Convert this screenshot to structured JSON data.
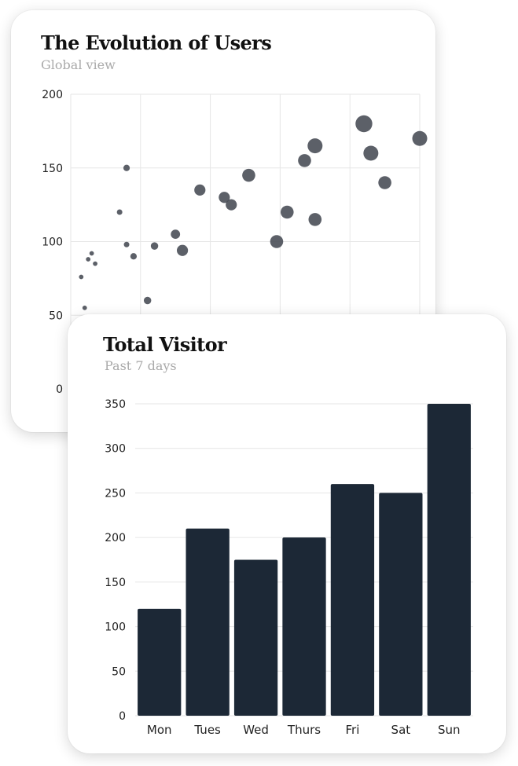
{
  "charts": {
    "users": {
      "title": "The Evolution of Users",
      "subtitle": "Global view"
    },
    "visitor": {
      "title": "Total Visitor",
      "subtitle": "Past 7 days"
    }
  },
  "colors": {
    "bubble": "#4a4f58",
    "bar": "#1c2836",
    "grid": "#e6e6e6",
    "title": "#111111",
    "subtitle": "#a9a9a9"
  },
  "chart_data": [
    {
      "type": "scatter",
      "title": "The Evolution of Users",
      "subtitle": "Global view",
      "ylim": [
        0,
        200
      ],
      "yticks": [
        0,
        50,
        100,
        150,
        200
      ],
      "grid": true,
      "points": [
        {
          "x": 0.15,
          "y": 76,
          "size": 1.5
        },
        {
          "x": 0.2,
          "y": 55,
          "size": 1.5
        },
        {
          "x": 0.25,
          "y": 88,
          "size": 1.5
        },
        {
          "x": 0.3,
          "y": 92,
          "size": 1.5
        },
        {
          "x": 0.35,
          "y": 85,
          "size": 1.5
        },
        {
          "x": 0.7,
          "y": 120,
          "size": 2
        },
        {
          "x": 0.8,
          "y": 98,
          "size": 2
        },
        {
          "x": 0.8,
          "y": 150,
          "size": 2.5
        },
        {
          "x": 0.9,
          "y": 90,
          "size": 2.5
        },
        {
          "x": 1.1,
          "y": 60,
          "size": 3
        },
        {
          "x": 1.2,
          "y": 97,
          "size": 3
        },
        {
          "x": 1.5,
          "y": 105,
          "size": 4
        },
        {
          "x": 1.6,
          "y": 94,
          "size": 5
        },
        {
          "x": 1.85,
          "y": 135,
          "size": 5
        },
        {
          "x": 2.2,
          "y": 130,
          "size": 5
        },
        {
          "x": 2.3,
          "y": 125,
          "size": 5
        },
        {
          "x": 2.55,
          "y": 145,
          "size": 6
        },
        {
          "x": 2.95,
          "y": 100,
          "size": 6
        },
        {
          "x": 3.1,
          "y": 120,
          "size": 6
        },
        {
          "x": 3.35,
          "y": 155,
          "size": 6
        },
        {
          "x": 3.5,
          "y": 165,
          "size": 7
        },
        {
          "x": 3.5,
          "y": 115,
          "size": 6
        },
        {
          "x": 4.2,
          "y": 180,
          "size": 8
        },
        {
          "x": 4.3,
          "y": 160,
          "size": 7
        },
        {
          "x": 4.5,
          "y": 140,
          "size": 6
        },
        {
          "x": 5.0,
          "y": 170,
          "size": 7
        }
      ]
    },
    {
      "type": "bar",
      "title": "Total Visitor",
      "subtitle": "Past 7 days",
      "categories": [
        "Mon",
        "Tues",
        "Wed",
        "Thurs",
        "Fri",
        "Sat",
        "Sun"
      ],
      "values": [
        120,
        210,
        175,
        200,
        260,
        250,
        350
      ],
      "ylim": [
        0,
        350
      ],
      "yticks": [
        0,
        50,
        100,
        150,
        200,
        250,
        300,
        350
      ],
      "grid": true
    }
  ]
}
